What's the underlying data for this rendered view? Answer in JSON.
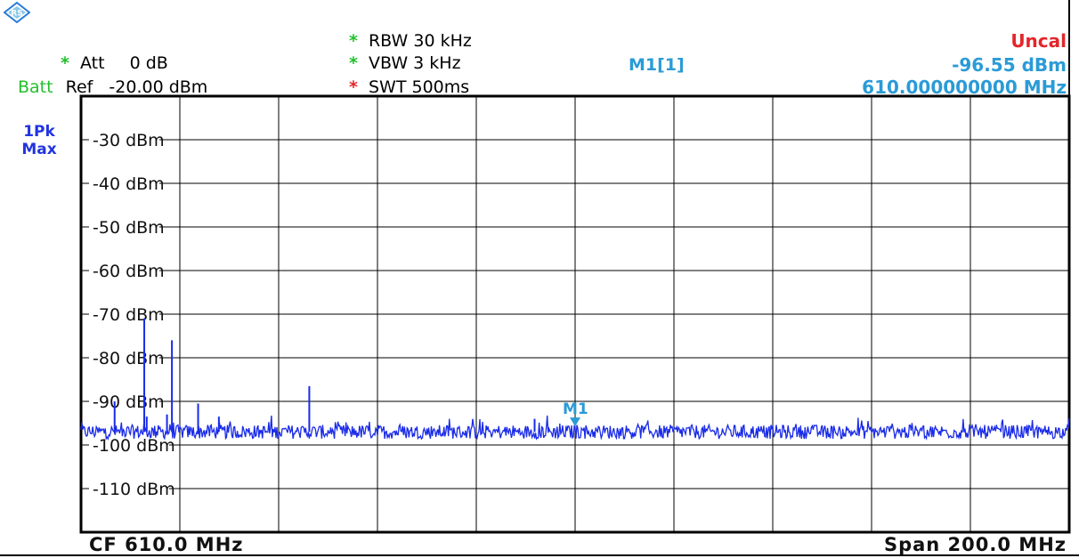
{
  "header": {
    "rbw_label": "RBW 30 kHz",
    "vbw_label": "VBW 3 kHz",
    "swt_label": "SWT 500ms",
    "att_label": "Att",
    "att_value": "0 dB",
    "batt_label": "Batt",
    "ref_label": "Ref",
    "ref_value": "-20.00 dBm",
    "marker_label": "M1[1]",
    "marker_level": "-96.55 dBm",
    "marker_freq": "610.000000000 MHz",
    "uncal_label": "Uncal",
    "star_glyph": "*"
  },
  "trace": {
    "mode_line1": "1Pk",
    "mode_line2": "Max"
  },
  "footer": {
    "center_freq": "CF 610.0 MHz",
    "span": "Span 200.0 MHz"
  },
  "colors": {
    "trace": "#1a2be8",
    "marker": "#2a9bd6",
    "grid": "#000000",
    "star_green": "#22c02a",
    "star_red": "#e3262a",
    "uncal": "#e3262a"
  },
  "chart_data": {
    "type": "line",
    "x_unit": "MHz",
    "xlim": [
      510,
      710
    ],
    "ylim": [
      -120,
      -20
    ],
    "grid": true,
    "y_ticks": [
      {
        "value": -30,
        "label": "-30 dBm"
      },
      {
        "value": -40,
        "label": "-40 dBm"
      },
      {
        "value": -50,
        "label": "-50 dBm"
      },
      {
        "value": -60,
        "label": "-60 dBm"
      },
      {
        "value": -70,
        "label": "-70 dBm"
      },
      {
        "value": -80,
        "label": "-80 dBm"
      },
      {
        "value": -90,
        "label": "-90 dBm"
      },
      {
        "value": -100,
        "label": "-100 dBm"
      },
      {
        "value": -110,
        "label": "-110 dBm"
      }
    ],
    "noise_floor_dbm": -97,
    "spurs": [
      {
        "x": 522.8,
        "y": -71.0
      },
      {
        "x": 528.4,
        "y": -76.0
      },
      {
        "x": 516.8,
        "y": -90.0
      },
      {
        "x": 533.7,
        "y": -90.5
      },
      {
        "x": 556.2,
        "y": -86.5
      },
      {
        "x": 523.3,
        "y": -93.5
      },
      {
        "x": 527.4,
        "y": -93.0
      },
      {
        "x": 537.9,
        "y": -93.5
      },
      {
        "x": 601.8,
        "y": -94.0
      }
    ],
    "marker": {
      "name": "M1",
      "x": 610.0,
      "y": -96.55
    }
  }
}
